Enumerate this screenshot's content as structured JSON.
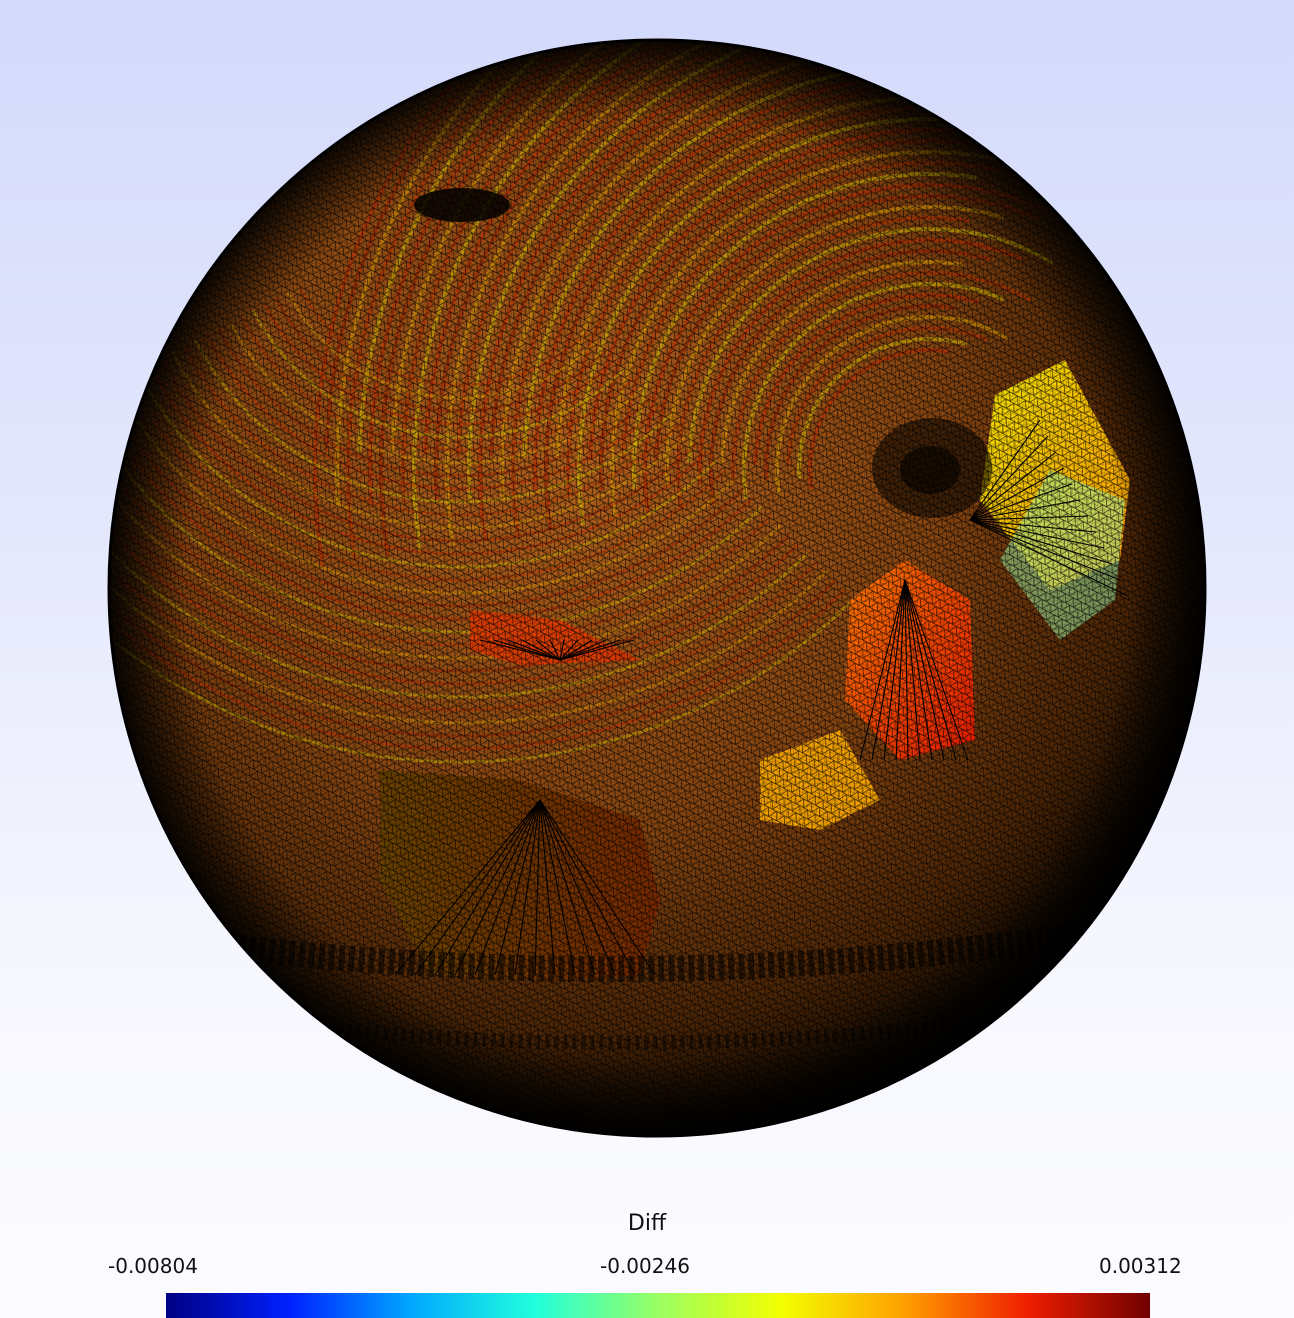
{
  "scalar_bar": {
    "title": "Diff",
    "min_label": "-0.00804",
    "mid_label": "-0.00246",
    "max_label": "0.00312",
    "colormap": [
      "#000083",
      "#0020ff",
      "#00a8ff",
      "#21ffdc",
      "#9aff62",
      "#f3ff00",
      "#ffa000",
      "#f01e00",
      "#700000"
    ]
  },
  "colors": {
    "background_top": "#d3d9fb",
    "background_bottom": "#fbfbff",
    "mesh_edges": "#000000",
    "surface_base": "#8c4a12"
  }
}
